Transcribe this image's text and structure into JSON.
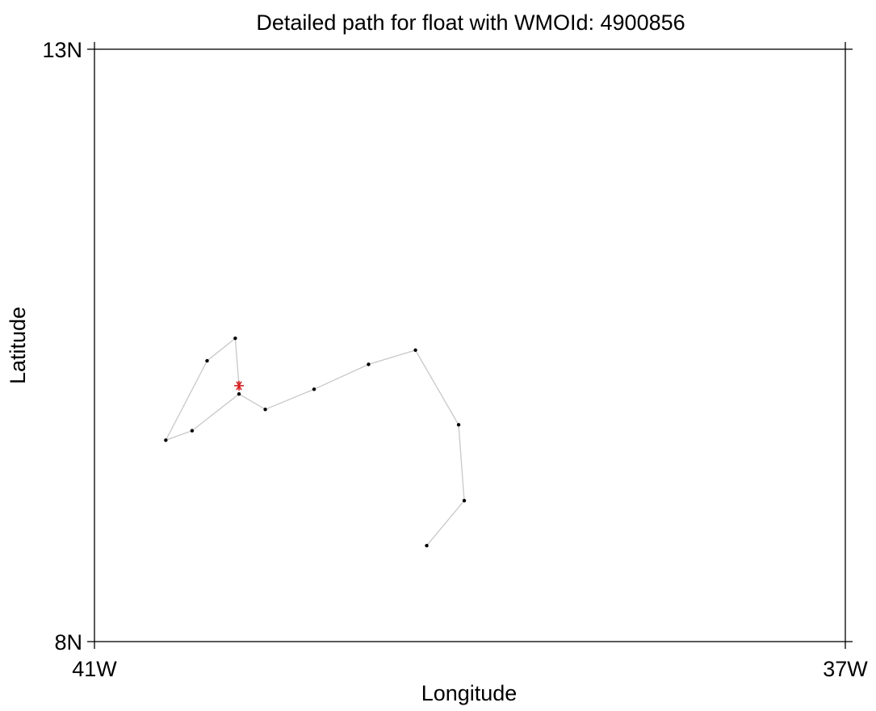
{
  "chart_data": {
    "type": "line",
    "title": "Detailed path for float with WMOId: 4900856",
    "xlabel": "Longitude",
    "ylabel": "Latitude",
    "xlim": [
      -41,
      -37
    ],
    "ylim": [
      8,
      13
    ],
    "x_ticks": [
      {
        "value": -41,
        "label": "41W"
      },
      {
        "value": -37,
        "label": "37W"
      }
    ],
    "y_ticks": [
      {
        "value": 8,
        "label": "8N"
      },
      {
        "value": 13,
        "label": "13N"
      }
    ],
    "grid": false,
    "colors": {
      "path_line": "#c8c8c8",
      "profile_point": "#000000",
      "start_marker": "#d62020",
      "frame": "#000000"
    },
    "series": [
      {
        "values": [
          {
            "x": -39.23,
            "y": 8.81
          },
          {
            "x": -39.03,
            "y": 9.19
          },
          {
            "x": -39.06,
            "y": 9.83
          },
          {
            "x": -39.29,
            "y": 10.46
          },
          {
            "x": -39.54,
            "y": 10.34
          },
          {
            "x": -39.83,
            "y": 10.13
          },
          {
            "x": -40.09,
            "y": 9.96
          },
          {
            "x": -40.23,
            "y": 10.09
          },
          {
            "x": -40.48,
            "y": 9.78
          },
          {
            "x": -40.62,
            "y": 9.7
          },
          {
            "x": -40.4,
            "y": 10.37
          },
          {
            "x": -40.25,
            "y": 10.56
          },
          {
            "x": -40.23,
            "y": 10.16
          }
        ]
      }
    ],
    "start_point": {
      "x": -40.23,
      "y": 10.16
    }
  }
}
